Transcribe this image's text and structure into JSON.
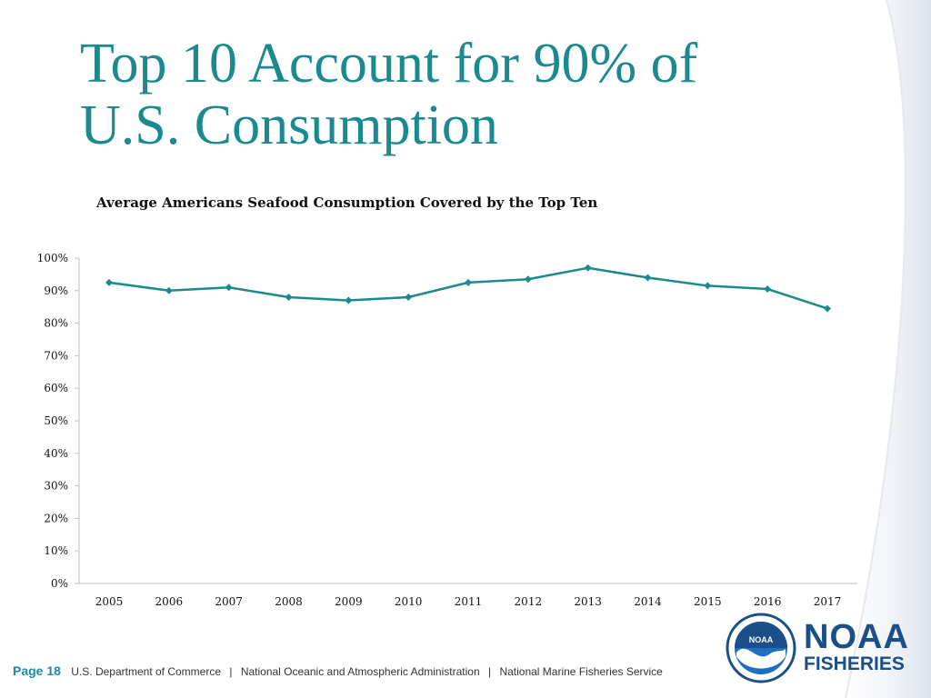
{
  "slide": {
    "title_line1": "Top 10 Account for 90% of",
    "title_line2": "U.S. Consumption"
  },
  "footer": {
    "page": "Page 18",
    "org1": "U.S. Department of Commerce",
    "org2": "National Oceanic and Atmospheric Administration",
    "org3": "National Marine Fisheries Service"
  },
  "logo": {
    "line1": "NOAA",
    "line2": "FISHERIES",
    "seal_text": "NOAA",
    "seal_icon": "noaa-seal-icon"
  },
  "colors": {
    "accent": "#1b8a90",
    "series": "#1a8a8f",
    "logo": "#1a4f8a"
  },
  "chart_data": {
    "type": "line",
    "title": "Average Americans Seafood Consumption Covered by the Top Ten",
    "xlabel": "",
    "ylabel": "",
    "categories": [
      "2005",
      "2006",
      "2007",
      "2008",
      "2009",
      "2010",
      "2011",
      "2012",
      "2013",
      "2014",
      "2015",
      "2016",
      "2017"
    ],
    "series": [
      {
        "values": [
          92.5,
          90.0,
          91.0,
          88.0,
          87.0,
          88.0,
          92.5,
          93.5,
          97.0,
          94.0,
          91.5,
          90.5,
          84.5
        ]
      }
    ],
    "ylim": [
      0,
      100
    ],
    "yticks": [
      0,
      10,
      20,
      30,
      40,
      50,
      60,
      70,
      80,
      90,
      100
    ],
    "ytick_labels": [
      "0%",
      "10%",
      "20%",
      "30%",
      "40%",
      "50%",
      "60%",
      "70%",
      "80%",
      "90%",
      "100%"
    ],
    "grid": false,
    "legend": "none"
  }
}
